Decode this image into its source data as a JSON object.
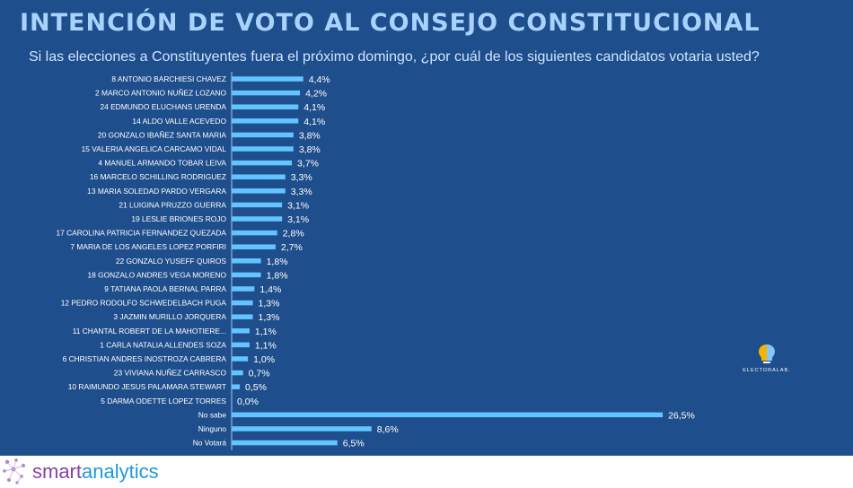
{
  "header": {
    "title": "INTENCIÓN DE VOTO AL CONSEJO CONSTITUCIONAL",
    "subtitle": "Si las elecciones a Constituyentes fuera el próximo domingo, ¿por cuál de los siguientes candidatos votaria usted?"
  },
  "logo": {
    "text": "ELECTORALAB.",
    "icon": "brain-bulb-icon",
    "colors": [
      "#f5b400",
      "#7ec8ff"
    ]
  },
  "footer": {
    "brand_part1": "smart",
    "brand_part2": "analytics",
    "icon": "network-dots-icon"
  },
  "colors": {
    "panel_bg": "#1f4e8c",
    "bar": "#63c4ff",
    "title": "#a9d3ff"
  },
  "chart_data": {
    "type": "bar",
    "orientation": "horizontal",
    "grid": false,
    "categories": [
      "8 ANTONIO BARCHIESI CHAVEZ",
      "2 MARCO ANTONIO NUÑEZ LOZANO",
      "24 EDMUNDO ELUCHANS URENDA",
      "14 ALDO VALLE ACEVEDO",
      "20 GONZALO IBAÑEZ SANTA MARIA",
      "15 VALERIA ANGELICA CARCAMO VIDAL",
      "4 MANUEL ARMANDO TOBAR LEIVA",
      "16 MARCELO SCHILLING RODRIGUEZ",
      "13 MARIA SOLEDAD PARDO VERGARA",
      "21 LUIGINA PRUZZO GUERRA",
      "19 LESLIE BRIONES ROJO",
      "17 CAROLINA PATRICIA FERNANDEZ QUEZADA",
      "7 MARIA DE LOS ANGELES LOPEZ PORFIRI",
      "22 GONZALO YUSEFF QUIROS",
      "18 GONZALO ANDRES VEGA MORENO",
      "9 TATIANA PAOLA BERNAL PARRA",
      "12 PEDRO RODOLFO SCHWEDELBACH PUGA",
      "3 JAZMIN MURILLO JORQUERA",
      "11 CHANTAL ROBERT DE LA MAHOTIERE...",
      "1 CARLA NATALIA ALLENDES SOZA",
      "6 CHRISTIAN ANDRES INOSTROZA CABRERA",
      "23 VIVIANA NUÑEZ CARRASCO",
      "10 RAIMUNDO JESUS PALAMARA STEWART",
      "5 DARMA ODETTE LOPEZ TORRES",
      "No sabe",
      "Ninguno",
      "No Votará"
    ],
    "values": [
      4.4,
      4.2,
      4.1,
      4.1,
      3.8,
      3.8,
      3.7,
      3.3,
      3.3,
      3.1,
      3.1,
      2.8,
      2.7,
      1.8,
      1.8,
      1.4,
      1.3,
      1.3,
      1.1,
      1.1,
      1.0,
      0.7,
      0.5,
      0.0,
      26.5,
      8.6,
      6.5
    ],
    "value_labels": [
      "4,4%",
      "4,2%",
      "4,1%",
      "4,1%",
      "3,8%",
      "3,8%",
      "3,7%",
      "3,3%",
      "3,3%",
      "3,1%",
      "3,1%",
      "2,8%",
      "2,7%",
      "1,8%",
      "1,8%",
      "1,4%",
      "1,3%",
      "1,3%",
      "1,1%",
      "1,1%",
      "1,0%",
      "0,7%",
      "0,5%",
      "0,0%",
      "26,5%",
      "8,6%",
      "6,5%"
    ],
    "unit": "%",
    "xlim": [
      0,
      27.6
    ]
  }
}
